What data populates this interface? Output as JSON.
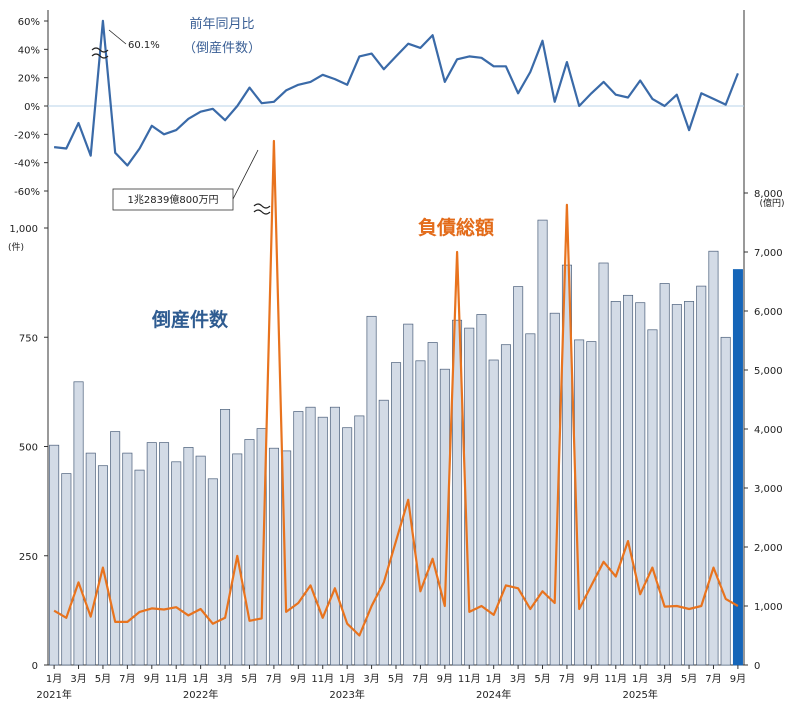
{
  "chart_data": {
    "type": "bar+line",
    "x_months": [
      "2021-01",
      "2021-02",
      "2021-03",
      "2021-04",
      "2021-05",
      "2021-06",
      "2021-07",
      "2021-08",
      "2021-09",
      "2021-10",
      "2021-11",
      "2021-12",
      "2022-01",
      "2022-02",
      "2022-03",
      "2022-04",
      "2022-05",
      "2022-06",
      "2022-07",
      "2022-08",
      "2022-09",
      "2022-10",
      "2022-11",
      "2022-12",
      "2023-01",
      "2023-02",
      "2023-03",
      "2023-04",
      "2023-05",
      "2023-06",
      "2023-07",
      "2023-08",
      "2023-09",
      "2023-10",
      "2023-11",
      "2023-12",
      "2024-01",
      "2024-02",
      "2024-03",
      "2024-04",
      "2024-05",
      "2024-06",
      "2024-07",
      "2024-08",
      "2024-09",
      "2024-10",
      "2024-11",
      "2024-12",
      "2025-01",
      "2025-02",
      "2025-03",
      "2025-04",
      "2025-05",
      "2025-06",
      "2025-07",
      "2025-08",
      "2025-09"
    ],
    "x_tick_labels": [
      "1月",
      "3月",
      "5月",
      "7月",
      "9月",
      "11月",
      "1月",
      "3月",
      "5月",
      "7月",
      "9月",
      "11月",
      "1月",
      "3月",
      "5月",
      "7月",
      "9月",
      "11月",
      "1月",
      "3月",
      "5月",
      "7月",
      "9月",
      "11月",
      "1月",
      "3月",
      "5月",
      "7月",
      "9月"
    ],
    "year_labels": [
      "2021年",
      "2022年",
      "2023年",
      "2024年",
      "2025年"
    ],
    "bankruptcy_counts": {
      "name": "倒産件数",
      "values": [
        503,
        438,
        648,
        485,
        456,
        534,
        485,
        446,
        509,
        509,
        465,
        498,
        478,
        426,
        585,
        483,
        516,
        541,
        496,
        490,
        580,
        590,
        567,
        590,
        543,
        570,
        798,
        606,
        692,
        780,
        696,
        738,
        677,
        789,
        771,
        802,
        698,
        733,
        866,
        758,
        1018,
        805,
        915,
        744,
        740,
        920,
        832,
        846,
        829,
        767,
        873,
        825,
        832,
        867,
        947,
        750,
        905
      ],
      "highlight_last": true,
      "bar_color": "#d3dbe6",
      "highlight_color": "#1565b8",
      "y_ticks": [
        "0",
        "250",
        "500",
        "750",
        "1,000"
      ],
      "y_unit": "(件)",
      "ylim": [
        0,
        1000
      ]
    },
    "total_debt": {
      "name": "負債総額",
      "values": [
        920,
        800,
        1400,
        820,
        1650,
        730,
        730,
        900,
        960,
        940,
        980,
        840,
        950,
        700,
        800,
        1850,
        750,
        790,
        12839,
        900,
        1050,
        1350,
        800,
        1300,
        700,
        500,
        1000,
        1400,
        2100,
        2800,
        1250,
        1800,
        1000,
        7000,
        900,
        1000,
        850,
        1350,
        1300,
        950,
        1250,
        1050,
        7800,
        950,
        1350,
        1750,
        1500,
        2100,
        1200,
        1650,
        990,
        1000,
        950,
        1000,
        1650,
        1120,
        1000
      ],
      "line_color": "#e8731e",
      "y_ticks": [
        "0",
        "1,000",
        "2,000",
        "3,000",
        "4,000",
        "5,000",
        "6,000",
        "7,000",
        "8,000"
      ],
      "y_unit": "(億円)",
      "ylim": [
        0,
        8000
      ],
      "annotation": "1兆2839億800万円"
    },
    "yoy": {
      "title_line1": "前年同月比",
      "title_line2": "（倒産件数）",
      "values": [
        -29,
        -30,
        -12,
        -35,
        60.1,
        -33,
        -42,
        -30,
        -14,
        -20,
        -17,
        -9,
        -4,
        -2,
        -10,
        0,
        13,
        2,
        3,
        11,
        15,
        17,
        22,
        19,
        15,
        35,
        37,
        26,
        35,
        44,
        41,
        50,
        17,
        33,
        35,
        34,
        28,
        28,
        9,
        24,
        46,
        3,
        31,
        0,
        9,
        17,
        8,
        6,
        18,
        5,
        0,
        8,
        -17,
        9,
        5,
        1,
        23
      ],
      "line_color": "#3a6aa8",
      "y_ticks": [
        "60%",
        "40%",
        "20%",
        "0%",
        "-20%",
        "-40%",
        "-60%"
      ],
      "annotation": "60.1%"
    },
    "bar_series_label": "倒産件数",
    "line_series_label": "負債総額"
  }
}
